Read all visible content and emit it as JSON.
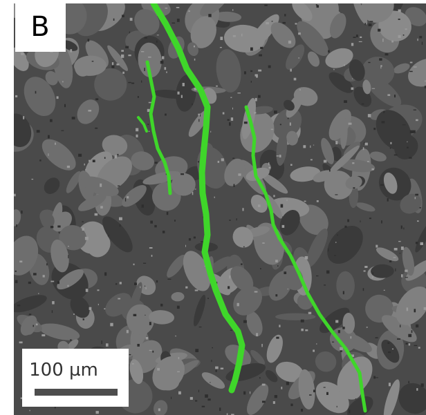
{
  "panel": {
    "label": "B"
  },
  "scale_bar": {
    "label": "100 µm"
  }
}
